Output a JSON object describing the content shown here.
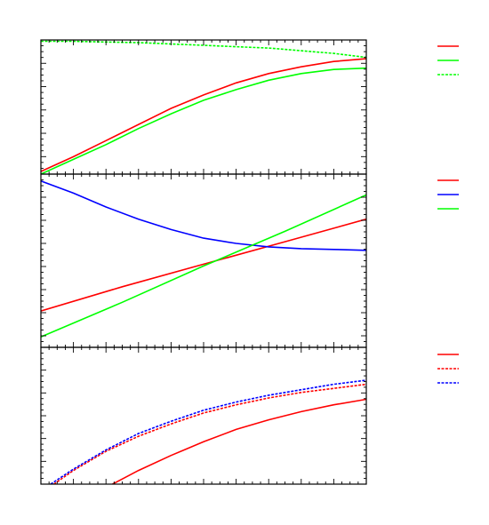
{
  "figure": {
    "title": "",
    "colors": {
      "red": "#ff0000",
      "green": "#00ff00",
      "blue": "#0000ff",
      "axis": "#000000"
    }
  },
  "chart_data": [
    {
      "type": "line",
      "panel": "top",
      "title": "",
      "xlabel": "",
      "ylabel": "",
      "xlim": [
        0,
        1
      ],
      "ylim": [
        0,
        1
      ],
      "grid": false,
      "legend_position": "right",
      "series": [
        {
          "color": "#ff0000",
          "style": "solid",
          "x": [
            0,
            0.1,
            0.2,
            0.3,
            0.4,
            0.5,
            0.6,
            0.7,
            0.8,
            0.9,
            1.0
          ],
          "y": [
            0.02,
            0.13,
            0.25,
            0.37,
            0.49,
            0.59,
            0.68,
            0.75,
            0.8,
            0.84,
            0.86
          ]
        },
        {
          "color": "#00ff00",
          "style": "solid",
          "x": [
            0,
            0.1,
            0.2,
            0.3,
            0.4,
            0.5,
            0.6,
            0.7,
            0.8,
            0.9,
            1.0
          ],
          "y": [
            0.0,
            0.11,
            0.22,
            0.34,
            0.45,
            0.55,
            0.63,
            0.7,
            0.75,
            0.78,
            0.79
          ]
        },
        {
          "color": "#00ff00",
          "style": "dotted",
          "x": [
            0,
            0.1,
            0.2,
            0.3,
            0.4,
            0.5,
            0.6,
            0.7,
            0.8,
            0.9,
            1.0
          ],
          "y": [
            0.99,
            0.99,
            0.985,
            0.98,
            0.97,
            0.96,
            0.95,
            0.94,
            0.92,
            0.9,
            0.87
          ]
        }
      ]
    },
    {
      "type": "line",
      "panel": "middle",
      "title": "",
      "xlabel": "",
      "ylabel": "",
      "xlim": [
        0,
        1
      ],
      "ylim": [
        0,
        1
      ],
      "grid": false,
      "legend_position": "right",
      "series": [
        {
          "color": "#ff0000",
          "style": "solid",
          "x": [
            0,
            0.25,
            0.5,
            0.75,
            1.0
          ],
          "y": [
            0.21,
            0.35,
            0.48,
            0.61,
            0.74
          ]
        },
        {
          "color": "#0000ff",
          "style": "solid",
          "x": [
            0,
            0.1,
            0.2,
            0.3,
            0.4,
            0.5,
            0.6,
            0.7,
            0.8,
            0.9,
            1.0
          ],
          "y": [
            0.96,
            0.89,
            0.81,
            0.74,
            0.68,
            0.63,
            0.6,
            0.58,
            0.57,
            0.565,
            0.56
          ]
        },
        {
          "color": "#00ff00",
          "style": "solid",
          "x": [
            0,
            0.25,
            0.5,
            0.75,
            1.0
          ],
          "y": [
            0.06,
            0.26,
            0.47,
            0.67,
            0.88
          ]
        }
      ]
    },
    {
      "type": "line",
      "panel": "bottom",
      "title": "",
      "xlabel": "",
      "ylabel": "",
      "xlim": [
        0,
        1
      ],
      "ylim": [
        0,
        1
      ],
      "grid": false,
      "legend_position": "right",
      "series": [
        {
          "color": "#ff0000",
          "style": "solid",
          "x": [
            0.22,
            0.3,
            0.4,
            0.5,
            0.6,
            0.7,
            0.8,
            0.9,
            1.0
          ],
          "y": [
            0.0,
            0.1,
            0.21,
            0.31,
            0.4,
            0.47,
            0.53,
            0.58,
            0.62
          ]
        },
        {
          "color": "#ff0000",
          "style": "dotted",
          "x": [
            0.04,
            0.1,
            0.2,
            0.3,
            0.4,
            0.5,
            0.6,
            0.7,
            0.8,
            0.9,
            1.0
          ],
          "y": [
            0.0,
            0.1,
            0.24,
            0.35,
            0.44,
            0.52,
            0.58,
            0.63,
            0.67,
            0.7,
            0.73
          ]
        },
        {
          "color": "#0000ff",
          "style": "dotted",
          "x": [
            0.03,
            0.1,
            0.2,
            0.3,
            0.4,
            0.5,
            0.6,
            0.7,
            0.8,
            0.9,
            1.0
          ],
          "y": [
            0.0,
            0.11,
            0.25,
            0.37,
            0.46,
            0.54,
            0.6,
            0.65,
            0.69,
            0.73,
            0.76
          ]
        }
      ]
    }
  ]
}
